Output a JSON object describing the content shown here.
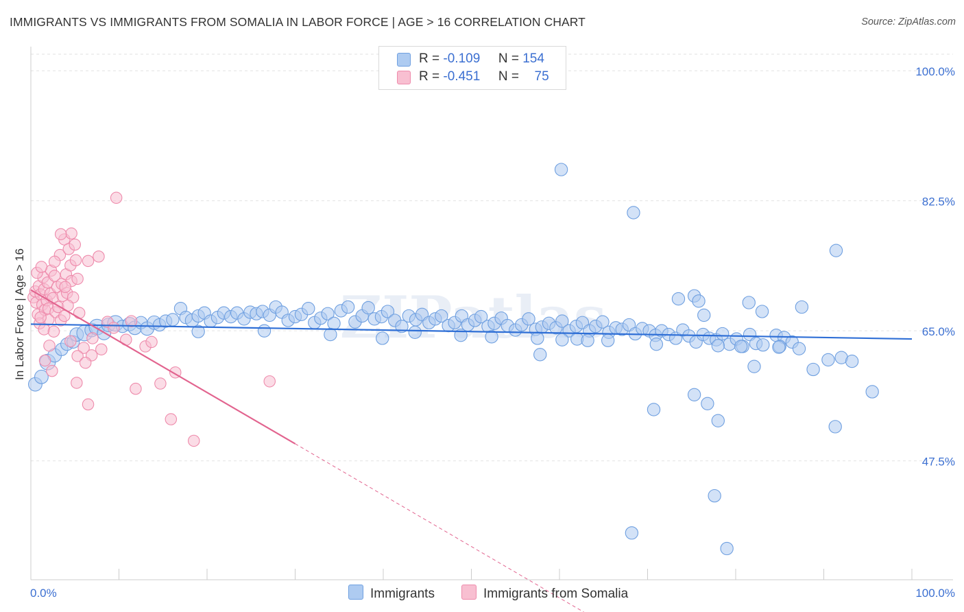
{
  "title": "IMMIGRANTS VS IMMIGRANTS FROM SOMALIA IN LABOR FORCE | AGE > 16 CORRELATION CHART",
  "source": "Source: ZipAtlas.com",
  "watermark": "ZIPatlas",
  "colors": {
    "blue_fill": "#aecbf1",
    "blue_stroke": "#6e9fe0",
    "blue_line": "#2f6fd6",
    "pink_fill": "#f8bfd1",
    "pink_stroke": "#ee8aab",
    "pink_line": "#e2648f",
    "axis_label": "#3b6fd1",
    "grid": "#e2e2e2"
  },
  "legend_stats": [
    {
      "r_label": "R =",
      "r_value": "-0.109",
      "n_label": "N =",
      "n_value": "154",
      "color": "#aecbf1"
    },
    {
      "r_label": "R =",
      "r_value": "-0.451",
      "n_label": "N =",
      "n_value": "75",
      "color": "#f8bfd1"
    }
  ],
  "bottom_legend": [
    {
      "label": "Immigrants",
      "color": "#aecbf1"
    },
    {
      "label": "Immigrants from Somalia",
      "color": "#f8bfd1"
    }
  ],
  "chart_data": {
    "type": "scatter",
    "title": "IMMIGRANTS VS IMMIGRANTS FROM SOMALIA IN LABOR FORCE | AGE > 16 CORRELATION CHART",
    "xlabel": "",
    "ylabel": "In Labor Force | Age > 16",
    "xlim": [
      0,
      100
    ],
    "ylim": [
      31.5,
      102.5
    ],
    "x_tick_labels": [
      "0.0%",
      "100.0%"
    ],
    "y_ticks": [
      47.5,
      65.0,
      82.5,
      100.0
    ],
    "y_tick_labels": [
      "47.5%",
      "65.0%",
      "82.5%",
      "100.0%"
    ],
    "grid": true,
    "legend_position": "top-center",
    "series": [
      {
        "name": "Immigrants",
        "trend": {
          "x": [
            0,
            100
          ],
          "y": [
            65.9,
            63.9
          ]
        },
        "points": [
          [
            0.5,
            57.8,
            1.3
          ],
          [
            1.2,
            58.8,
            1.3
          ],
          [
            1.9,
            60.8,
            1.5
          ],
          [
            2.7,
            61.7,
            1.3
          ],
          [
            3.5,
            62.5,
            1.2
          ],
          [
            4.1,
            63.2,
            1.2
          ],
          [
            4.8,
            63.5,
            1.2
          ],
          [
            5.2,
            64.5,
            1.3
          ],
          [
            6.1,
            64.7,
            1.5
          ],
          [
            6.9,
            65.1,
            1.3
          ],
          [
            7.5,
            65.5,
            1.5
          ],
          [
            8.3,
            64.7,
            1.3
          ],
          [
            8.8,
            65.8,
            1.3
          ],
          [
            9.6,
            66.0,
            1.5
          ],
          [
            10.4,
            65.6,
            1.2
          ],
          [
            11.2,
            65.9,
            1.3
          ],
          [
            11.8,
            65.4,
            1.3
          ],
          [
            12.5,
            66.1,
            1.2
          ],
          [
            13.2,
            65.3,
            1.3
          ],
          [
            14.0,
            66.1,
            1.3
          ],
          [
            14.6,
            65.8,
            1.2
          ],
          [
            15.3,
            66.3,
            1.2
          ],
          [
            16.1,
            66.5,
            1.2
          ],
          [
            17.0,
            68.0,
            1.2
          ],
          [
            17.6,
            66.8,
            1.2
          ],
          [
            18.3,
            66.4,
            1.3
          ],
          [
            19.0,
            67.0,
            1.2
          ],
          [
            19.7,
            67.4,
            1.2
          ],
          [
            20.4,
            66.3,
            1.2
          ],
          [
            21.2,
            66.8,
            1.2
          ],
          [
            21.9,
            67.4,
            1.2
          ],
          [
            22.7,
            66.9,
            1.2
          ],
          [
            23.4,
            67.4,
            1.2
          ],
          [
            24.2,
            66.6,
            1.2
          ],
          [
            24.9,
            67.5,
            1.2
          ],
          [
            25.6,
            67.3,
            1.2
          ],
          [
            26.3,
            67.6,
            1.2
          ],
          [
            27.1,
            67.1,
            1.2
          ],
          [
            27.8,
            68.2,
            1.2
          ],
          [
            28.5,
            67.5,
            1.2
          ],
          [
            29.2,
            66.4,
            1.2
          ],
          [
            30.0,
            66.9,
            1.2
          ],
          [
            30.7,
            67.2,
            1.2
          ],
          [
            31.5,
            68.0,
            1.2
          ],
          [
            32.2,
            66.1,
            1.2
          ],
          [
            32.9,
            66.7,
            1.2
          ],
          [
            33.7,
            67.3,
            1.2
          ],
          [
            34.4,
            66.0,
            1.2
          ],
          [
            35.2,
            67.7,
            1.2
          ],
          [
            36.0,
            68.2,
            1.2
          ],
          [
            36.8,
            66.2,
            1.2
          ],
          [
            37.6,
            67.0,
            1.2
          ],
          [
            38.3,
            68.1,
            1.2
          ],
          [
            39.0,
            66.6,
            1.2
          ],
          [
            39.8,
            66.9,
            1.2
          ],
          [
            40.5,
            67.6,
            1.2
          ],
          [
            41.3,
            66.4,
            1.2
          ],
          [
            42.1,
            65.6,
            1.2
          ],
          [
            42.9,
            67.0,
            1.2
          ],
          [
            43.7,
            66.5,
            1.2
          ],
          [
            44.4,
            67.2,
            1.2
          ],
          [
            45.2,
            66.1,
            1.2
          ],
          [
            45.9,
            66.6,
            1.2
          ],
          [
            46.6,
            67.0,
            1.2
          ],
          [
            47.4,
            65.7,
            1.2
          ],
          [
            48.1,
            66.1,
            1.2
          ],
          [
            48.9,
            67.0,
            1.2
          ],
          [
            49.6,
            65.8,
            1.2
          ],
          [
            50.4,
            66.4,
            1.2
          ],
          [
            51.1,
            66.9,
            1.2
          ],
          [
            51.9,
            65.6,
            1.2
          ],
          [
            52.6,
            66.0,
            1.2
          ],
          [
            53.4,
            66.7,
            1.2
          ],
          [
            54.1,
            65.7,
            1.2
          ],
          [
            55.0,
            65.1,
            1.2
          ],
          [
            55.7,
            65.8,
            1.2
          ],
          [
            56.5,
            66.6,
            1.2
          ],
          [
            57.3,
            65.2,
            1.2
          ],
          [
            58.0,
            65.5,
            1.2
          ],
          [
            58.8,
            66.0,
            1.2
          ],
          [
            59.6,
            65.4,
            1.2
          ],
          [
            60.3,
            66.3,
            1.2
          ],
          [
            61.1,
            65.0,
            1.2
          ],
          [
            61.9,
            65.6,
            1.2
          ],
          [
            62.6,
            66.1,
            1.2
          ],
          [
            63.4,
            65.0,
            1.2
          ],
          [
            64.1,
            65.6,
            1.2
          ],
          [
            64.9,
            66.2,
            1.2
          ],
          [
            65.6,
            64.8,
            1.2
          ],
          [
            66.4,
            65.4,
            1.2
          ],
          [
            67.1,
            65.2,
            1.2
          ],
          [
            67.9,
            65.8,
            1.2
          ],
          [
            68.6,
            64.6,
            1.2
          ],
          [
            69.4,
            65.3,
            1.2
          ],
          [
            70.2,
            65.0,
            1.2
          ],
          [
            70.9,
            64.4,
            1.2
          ],
          [
            71.6,
            65.0,
            1.2
          ],
          [
            72.4,
            64.5,
            1.2
          ],
          [
            73.2,
            64.0,
            1.2
          ],
          [
            74.0,
            65.1,
            1.2
          ],
          [
            74.7,
            64.3,
            1.2
          ],
          [
            75.5,
            63.5,
            1.2
          ],
          [
            76.3,
            64.5,
            1.2
          ],
          [
            77.0,
            64.0,
            1.2
          ],
          [
            77.8,
            63.8,
            1.2
          ],
          [
            78.5,
            64.6,
            1.2
          ],
          [
            79.3,
            63.2,
            1.2
          ],
          [
            80.1,
            63.9,
            1.2
          ],
          [
            80.8,
            62.9,
            1.2
          ],
          [
            81.6,
            64.5,
            1.2
          ],
          [
            82.3,
            63.3,
            1.2
          ],
          [
            83.1,
            63.1,
            1.2
          ],
          [
            84.6,
            64.4,
            1.2
          ],
          [
            85.5,
            64.1,
            1.2
          ],
          [
            86.4,
            63.5,
            1.2
          ],
          [
            87.2,
            62.6,
            1.2
          ],
          [
            19.0,
            64.9,
            1.2
          ],
          [
            26.5,
            65.0,
            1.2
          ],
          [
            34.0,
            64.5,
            1.2
          ],
          [
            39.9,
            64.0,
            1.2
          ],
          [
            43.6,
            64.8,
            1.2
          ],
          [
            48.8,
            64.4,
            1.2
          ],
          [
            52.3,
            64.2,
            1.2
          ],
          [
            57.5,
            64.0,
            1.2
          ],
          [
            62.0,
            63.9,
            1.2
          ],
          [
            65.5,
            63.7,
            1.2
          ],
          [
            71.0,
            63.2,
            1.2
          ],
          [
            78.0,
            63.0,
            1.2
          ],
          [
            85.0,
            62.9,
            1.2
          ],
          [
            73.5,
            69.3,
            1.2
          ],
          [
            75.3,
            69.7,
            1.2
          ],
          [
            75.8,
            69.0,
            1.2
          ],
          [
            76.4,
            67.1,
            1.2
          ],
          [
            81.5,
            68.8,
            1.2
          ],
          [
            83.0,
            67.6,
            1.2
          ],
          [
            87.5,
            68.2,
            1.2
          ],
          [
            80.6,
            62.9,
            1.2
          ],
          [
            84.9,
            62.8,
            1.2
          ],
          [
            82.1,
            60.2,
            1.2
          ],
          [
            88.8,
            59.8,
            1.2
          ],
          [
            90.5,
            61.1,
            1.2
          ],
          [
            92.0,
            61.4,
            1.2
          ],
          [
            93.2,
            60.9,
            1.2
          ],
          [
            75.3,
            56.4,
            1.2
          ],
          [
            76.8,
            55.2,
            1.2
          ],
          [
            95.5,
            56.8,
            1.2
          ],
          [
            78.0,
            52.9,
            1.2
          ],
          [
            91.3,
            52.1,
            1.2
          ],
          [
            70.7,
            54.4,
            1.2
          ],
          [
            68.4,
            80.9,
            1.2
          ],
          [
            60.2,
            86.7,
            1.2
          ],
          [
            91.4,
            75.8,
            1.2
          ],
          [
            77.6,
            42.8,
            1.2
          ],
          [
            68.2,
            37.8,
            1.2
          ],
          [
            79.0,
            35.7,
            1.2
          ],
          [
            63.2,
            63.7,
            1.2
          ],
          [
            60.3,
            63.8,
            1.2
          ],
          [
            57.8,
            61.8,
            1.2
          ]
        ]
      },
      {
        "name": "Immigrants from Somalia",
        "trend": {
          "x": [
            0,
            30
          ],
          "y": [
            70.5,
            49.8
          ]
        },
        "trend_dashed": {
          "x": [
            30,
            65
          ],
          "y": [
            49.8,
            25.6
          ]
        },
        "points": [
          [
            0.3,
            69.5,
            1.0
          ],
          [
            0.5,
            70.3,
            1.0
          ],
          [
            0.6,
            68.8,
            1.0
          ],
          [
            0.8,
            67.2,
            1.0
          ],
          [
            0.9,
            71.0,
            1.0
          ],
          [
            1.0,
            66.0,
            1.0
          ],
          [
            1.1,
            69.9,
            1.0
          ],
          [
            1.3,
            68.5,
            1.0
          ],
          [
            1.4,
            72.2,
            1.0
          ],
          [
            1.5,
            70.6,
            1.0
          ],
          [
            1.6,
            67.8,
            1.0
          ],
          [
            1.8,
            69.1,
            1.0
          ],
          [
            1.9,
            71.5,
            1.0
          ],
          [
            2.0,
            68.0,
            1.0
          ],
          [
            2.2,
            70.0,
            1.0
          ],
          [
            2.3,
            73.1,
            1.0
          ],
          [
            2.5,
            69.4,
            1.0
          ],
          [
            2.7,
            72.4,
            1.0
          ],
          [
            2.8,
            67.5,
            1.0
          ],
          [
            3.0,
            70.9,
            1.0
          ],
          [
            3.1,
            68.2,
            1.0
          ],
          [
            3.3,
            75.2,
            1.0
          ],
          [
            3.5,
            71.3,
            1.0
          ],
          [
            3.6,
            69.7,
            1.0
          ],
          [
            3.8,
            77.3,
            1.0
          ],
          [
            4.0,
            72.6,
            1.0
          ],
          [
            4.1,
            70.1,
            1.0
          ],
          [
            4.3,
            76.0,
            1.0
          ],
          [
            4.5,
            73.8,
            1.0
          ],
          [
            4.6,
            71.7,
            1.0
          ],
          [
            4.8,
            69.5,
            1.0
          ],
          [
            5.0,
            76.6,
            1.0
          ],
          [
            5.1,
            74.5,
            1.0
          ],
          [
            5.3,
            72.0,
            1.0
          ],
          [
            5.5,
            67.4,
            1.0
          ],
          [
            6.0,
            62.7,
            1.0
          ],
          [
            7.0,
            64.0,
            1.0
          ],
          [
            7.7,
            75.0,
            1.0
          ],
          [
            8.0,
            62.5,
            1.0
          ],
          [
            8.7,
            66.2,
            1.0
          ],
          [
            9.4,
            65.4,
            1.0
          ],
          [
            10.8,
            63.8,
            1.0
          ],
          [
            11.4,
            66.3,
            1.0
          ],
          [
            11.9,
            57.2,
            1.0
          ],
          [
            13.0,
            62.9,
            1.0
          ],
          [
            13.7,
            63.5,
            1.0
          ],
          [
            14.7,
            57.9,
            1.0
          ],
          [
            15.9,
            53.1,
            1.0
          ],
          [
            16.4,
            59.4,
            1.0
          ],
          [
            18.5,
            50.2,
            1.0
          ],
          [
            1.6,
            61.0,
            1.0
          ],
          [
            2.4,
            59.6,
            1.0
          ],
          [
            4.5,
            63.6,
            1.0
          ],
          [
            5.2,
            58.0,
            1.0
          ],
          [
            6.9,
            61.7,
            1.0
          ],
          [
            6.5,
            55.1,
            1.0
          ],
          [
            9.7,
            82.9,
            1.0
          ],
          [
            4.6,
            78.1,
            1.0
          ],
          [
            3.4,
            78.0,
            1.0
          ],
          [
            6.5,
            74.4,
            1.0
          ],
          [
            2.0,
            66.5,
            1.0
          ],
          [
            1.5,
            65.2,
            1.0
          ],
          [
            3.9,
            70.9,
            1.0
          ],
          [
            2.6,
            64.9,
            1.0
          ],
          [
            5.3,
            61.6,
            1.0
          ],
          [
            6.2,
            60.7,
            1.0
          ],
          [
            27.1,
            58.2,
            1.0
          ],
          [
            1.1,
            66.8,
            1.0
          ],
          [
            2.1,
            63.0,
            1.0
          ],
          [
            3.4,
            66.4,
            1.0
          ],
          [
            4.2,
            68.4,
            1.0
          ],
          [
            0.7,
            72.8,
            1.0
          ],
          [
            1.2,
            73.6,
            1.0
          ],
          [
            2.7,
            74.3,
            1.0
          ],
          [
            3.8,
            67.0,
            1.0
          ]
        ]
      }
    ]
  }
}
